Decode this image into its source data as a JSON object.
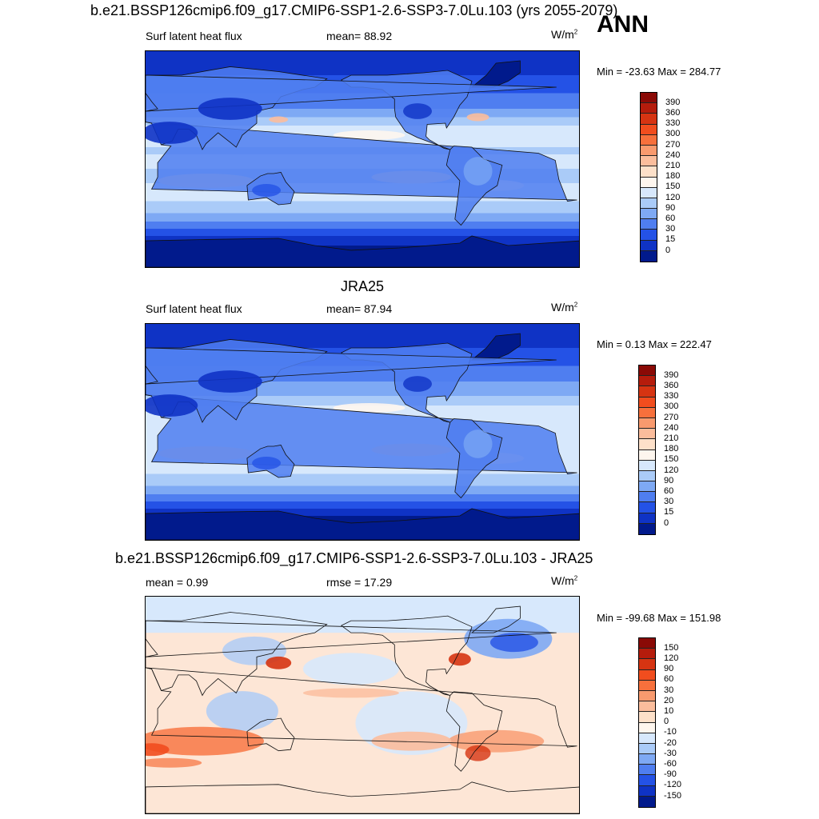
{
  "season": "ANN",
  "panels": [
    {
      "title": "b.e21.BSSP126cmip6.f09_g17.CMIP6-SSP1-2.6-SSP3-7.0Lu.103 (yrs 2055-2079)",
      "left_label": "Surf latent heat flux",
      "center_label": "mean=  88.92",
      "units": "W/m",
      "units_sup": "2",
      "minmax": "Min = -23.63 Max = 284.77",
      "colorbar_ticks": [
        "390",
        "360",
        "330",
        "300",
        "270",
        "240",
        "210",
        "180",
        "150",
        "120",
        "90",
        "60",
        "30",
        "15",
        "0"
      ],
      "colorbar_colors": [
        "#8a0a06",
        "#b51c0c",
        "#d63412",
        "#f14d1e",
        "#f7703c",
        "#f99a6e",
        "#fbbd9c",
        "#fde0c9",
        "#fef6ee",
        "#d7e8fc",
        "#aacbf8",
        "#7ea9f4",
        "#4f7ef0",
        "#2452e6",
        "#0f33c5",
        "#011a8c"
      ],
      "map_palette": "model"
    },
    {
      "title": "JRA25",
      "left_label": "Surf latent heat flux",
      "center_label": "mean=  87.94",
      "units": "W/m",
      "units_sup": "2",
      "minmax": "Min =   0.13 Max = 222.47",
      "colorbar_ticks": [
        "390",
        "360",
        "330",
        "300",
        "270",
        "240",
        "210",
        "180",
        "150",
        "120",
        "90",
        "60",
        "30",
        "15",
        "0"
      ],
      "colorbar_colors": [
        "#8a0a06",
        "#b51c0c",
        "#d63412",
        "#f14d1e",
        "#f7703c",
        "#f99a6e",
        "#fbbd9c",
        "#fde0c9",
        "#fef6ee",
        "#d7e8fc",
        "#aacbf8",
        "#7ea9f4",
        "#4f7ef0",
        "#2452e6",
        "#0f33c5",
        "#011a8c"
      ],
      "map_palette": "obs"
    },
    {
      "title": "b.e21.BSSP126cmip6.f09_g17.CMIP6-SSP1-2.6-SSP3-7.0Lu.103 - JRA25",
      "left_label": "mean =   0.99",
      "center_label": "rmse =  17.29",
      "units": "W/m",
      "units_sup": "2",
      "minmax": "Min = -99.68 Max = 151.98",
      "colorbar_ticks": [
        "150",
        "120",
        "90",
        "60",
        "30",
        "20",
        "10",
        "0",
        "-10",
        "-20",
        "-30",
        "-60",
        "-90",
        "-120",
        "-150"
      ],
      "colorbar_colors": [
        "#8a0a06",
        "#b51c0c",
        "#d63412",
        "#f14d1e",
        "#f7703c",
        "#f99a6e",
        "#fbbd9c",
        "#fde0c9",
        "#fef6ee",
        "#d7e8fc",
        "#aacbf8",
        "#7ea9f4",
        "#4f7ef0",
        "#2452e6",
        "#0f33c5",
        "#011a8c"
      ],
      "map_palette": "diff"
    }
  ]
}
